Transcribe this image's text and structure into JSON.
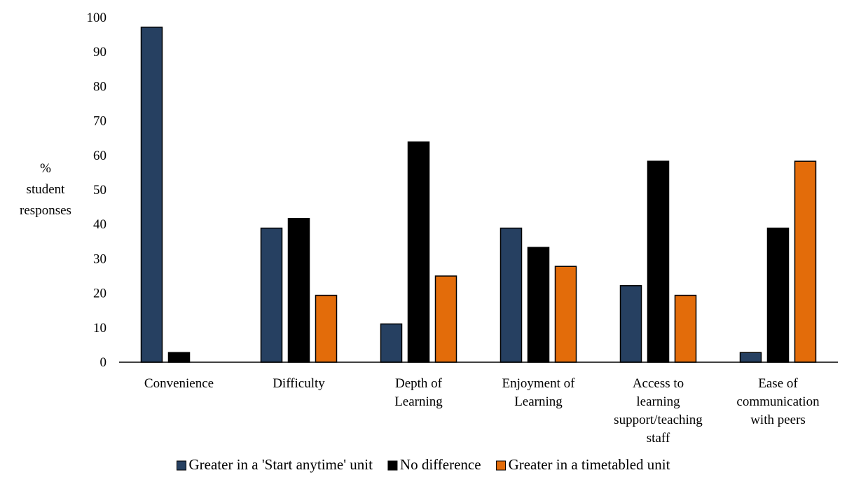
{
  "chart_data": {
    "type": "bar",
    "title": "",
    "xlabel": "",
    "ylabel": [
      "%",
      "student",
      "responses"
    ],
    "ylim": [
      0,
      100
    ],
    "yticks": [
      0,
      10,
      20,
      30,
      40,
      50,
      60,
      70,
      80,
      90,
      100
    ],
    "grid": false,
    "legend_position": "bottom",
    "categories": [
      [
        "Convenience"
      ],
      [
        "Difficulty"
      ],
      [
        "Depth of",
        "Learning"
      ],
      [
        "Enjoyment of",
        "Learning"
      ],
      [
        "Access to",
        "learning",
        "support/teaching",
        "staff"
      ],
      [
        "Ease of",
        "communication",
        "with peers"
      ]
    ],
    "series": [
      {
        "name": "Greater in a 'Start anytime' unit",
        "color": "#264061",
        "values": [
          97.2,
          38.9,
          11.1,
          38.9,
          22.2,
          2.8
        ]
      },
      {
        "name": "No difference",
        "color": "#000000",
        "values": [
          2.8,
          41.7,
          63.9,
          33.3,
          58.3,
          38.9
        ]
      },
      {
        "name": "Greater in a timetabled unit",
        "color": "#E36C0A",
        "values": [
          0,
          19.4,
          25.0,
          27.8,
          19.4,
          58.3
        ]
      }
    ]
  }
}
